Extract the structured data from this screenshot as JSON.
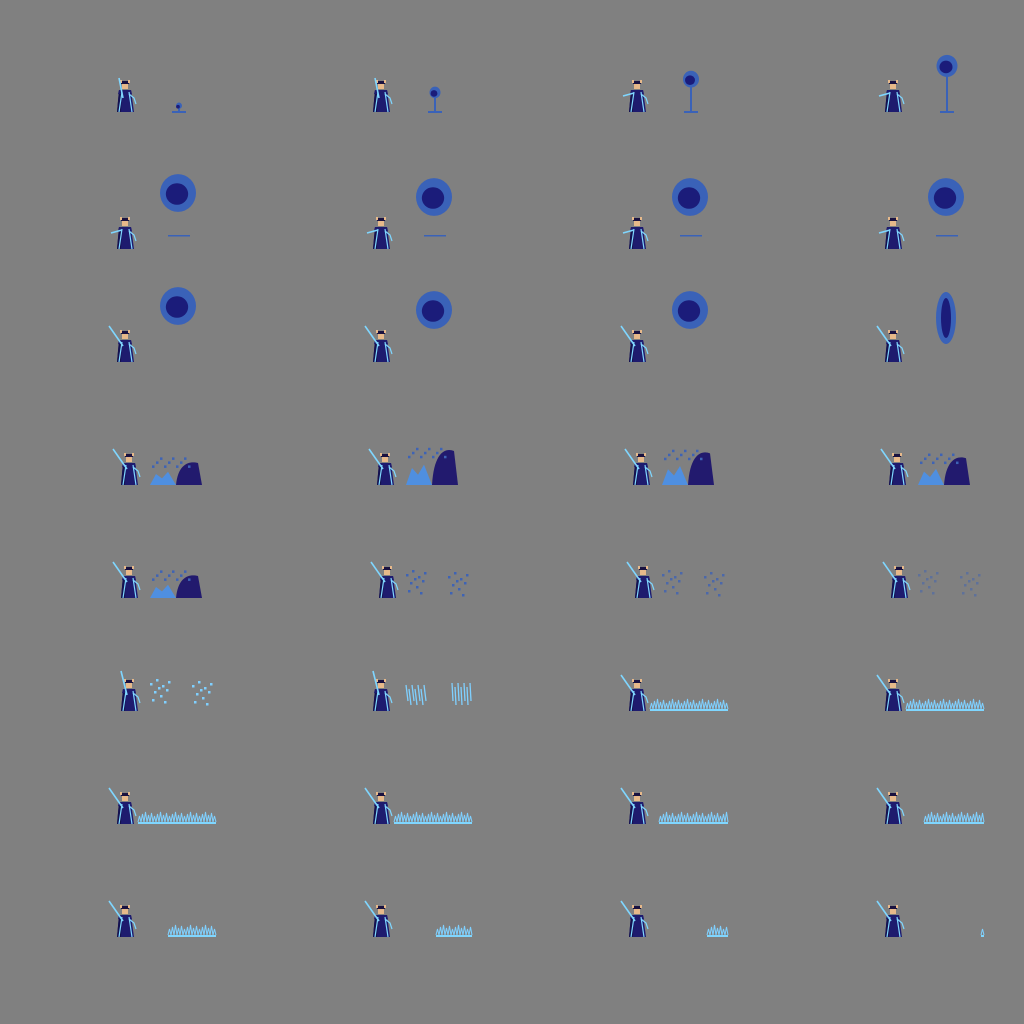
{
  "sheet": {
    "background": "#808080",
    "columns": 4,
    "rows": 8,
    "palette": {
      "robe": "#1e1b6e",
      "robe_dark": "#14114f",
      "trim": "#7fd6ff",
      "skin": "#e7b98a",
      "hair": "#1a1240",
      "hat": "#2a1e5c",
      "orb_outer": "#3a62b8",
      "orb_inner": "#1b1c7a",
      "splash_light": "#4f8fe0",
      "splash_dark": "#221a6e",
      "particle": "#3e63b5",
      "ice": "#7fd0ff"
    }
  },
  "frames": [
    {
      "index": 1,
      "phase": "orb-rise",
      "level": 0.1
    },
    {
      "index": 2,
      "phase": "orb-rise",
      "level": 0.35
    },
    {
      "index": 3,
      "phase": "orb-rise",
      "level": 0.6
    },
    {
      "index": 4,
      "phase": "orb-rise",
      "level": 0.85
    },
    {
      "index": 5,
      "phase": "orb-float",
      "level": 1
    },
    {
      "index": 6,
      "phase": "orb-float",
      "level": 1
    },
    {
      "index": 7,
      "phase": "orb-float",
      "level": 1
    },
    {
      "index": 8,
      "phase": "orb-float",
      "level": 1
    },
    {
      "index": 9,
      "phase": "orb-float",
      "level": 1
    },
    {
      "index": 10,
      "phase": "orb-float",
      "level": 1
    },
    {
      "index": 11,
      "phase": "orb-float",
      "level": 1
    },
    {
      "index": 12,
      "phase": "orb-drop",
      "level": 1
    },
    {
      "index": 13,
      "phase": "splash",
      "level": 0.5
    },
    {
      "index": 14,
      "phase": "splash",
      "level": 1
    },
    {
      "index": 15,
      "phase": "splash",
      "level": 0.9
    },
    {
      "index": 16,
      "phase": "splash",
      "level": 0.7
    },
    {
      "index": 17,
      "phase": "splash",
      "level": 0.5
    },
    {
      "index": 18,
      "phase": "particles",
      "level": 1
    },
    {
      "index": 19,
      "phase": "particles",
      "level": 0.8
    },
    {
      "index": 20,
      "phase": "particles",
      "level": 0.5
    },
    {
      "index": 21,
      "phase": "sparkles",
      "level": 1
    },
    {
      "index": 22,
      "phase": "shards",
      "level": 1
    },
    {
      "index": 23,
      "phase": "ice-field",
      "level": 1
    },
    {
      "index": 24,
      "phase": "ice-field",
      "level": 1
    },
    {
      "index": 25,
      "phase": "ice-field",
      "level": 1
    },
    {
      "index": 26,
      "phase": "ice-field",
      "level": 1
    },
    {
      "index": 27,
      "phase": "ice-field",
      "level": 0.9
    },
    {
      "index": 28,
      "phase": "ice-field",
      "level": 0.75
    },
    {
      "index": 29,
      "phase": "ice-field",
      "level": 0.6
    },
    {
      "index": 30,
      "phase": "ice-field",
      "level": 0.45
    },
    {
      "index": 31,
      "phase": "ice-field",
      "level": 0.25
    },
    {
      "index": 32,
      "phase": "ice-field",
      "level": 0.05
    }
  ]
}
